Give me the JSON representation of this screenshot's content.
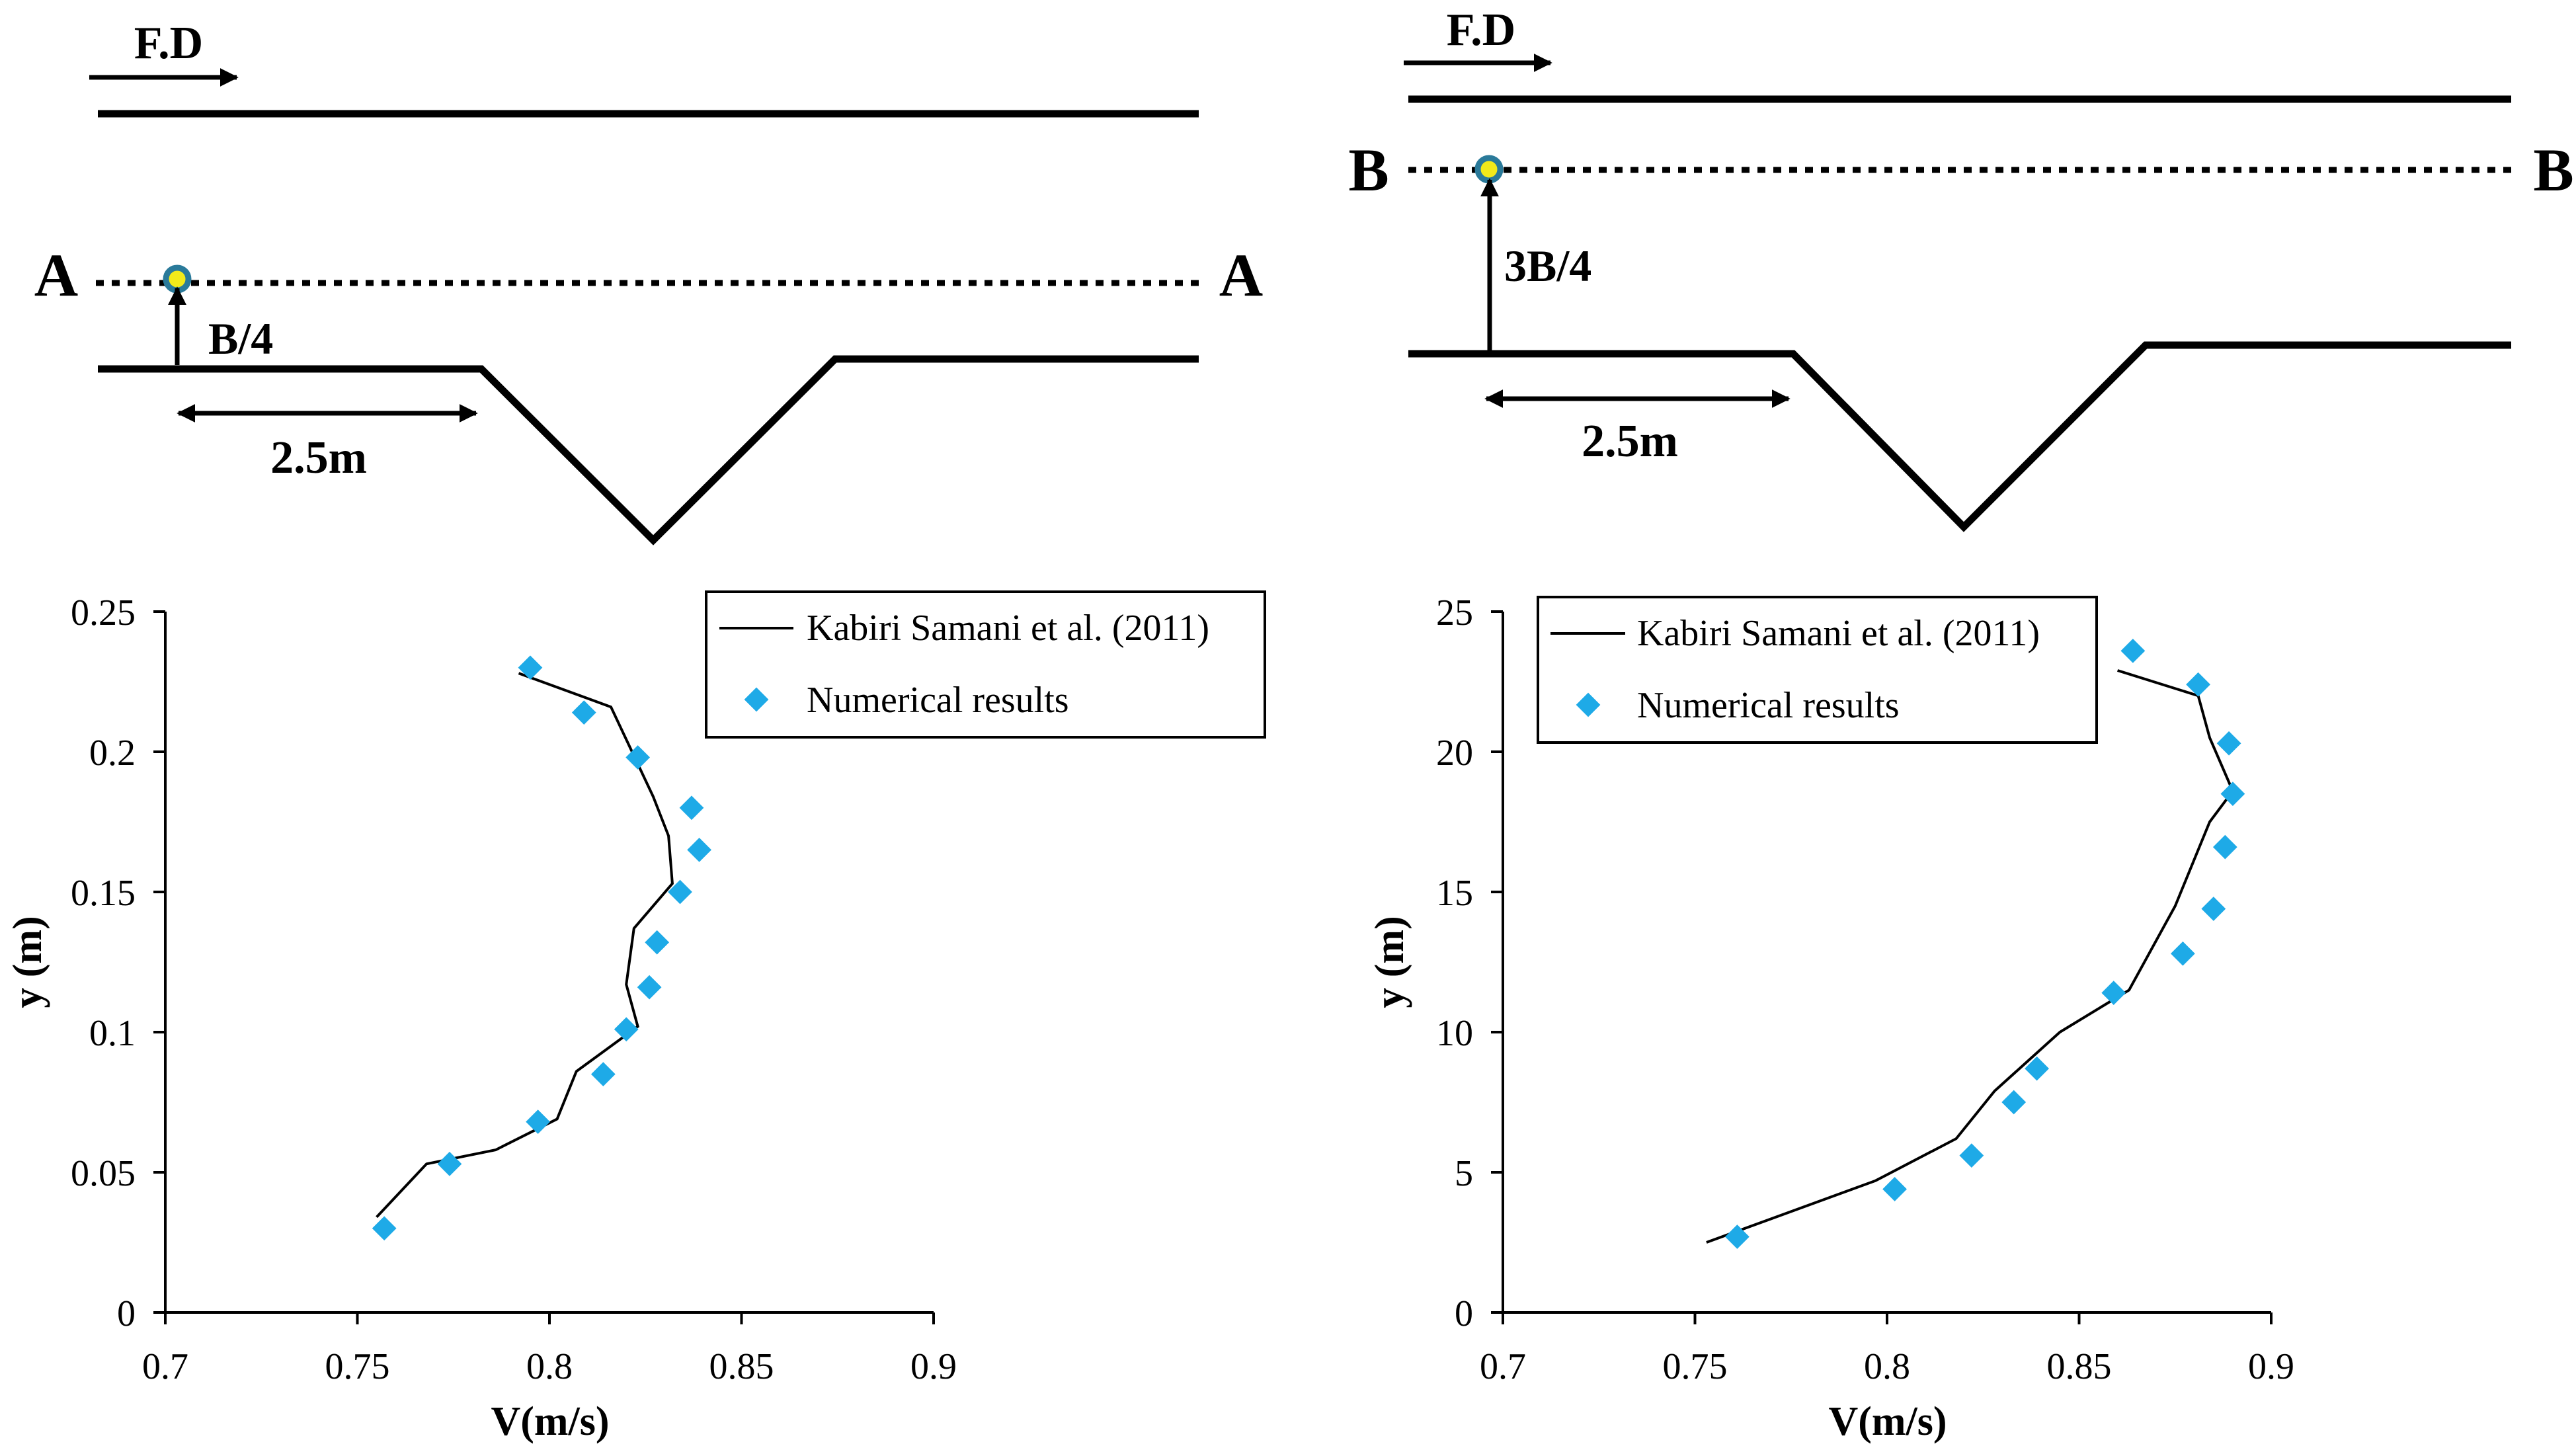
{
  "schematics": [
    {
      "flow_label": "F.D",
      "section_letter": "A",
      "offset_label": "B/4",
      "distance_label": "2.5m"
    },
    {
      "flow_label": "F.D",
      "section_letter": "B",
      "offset_label": "3B/4",
      "distance_label": "2.5m"
    }
  ],
  "chart_data": [
    {
      "type": "line+scatter",
      "section": "A",
      "xlabel": "V(m/s)",
      "ylabel": "y (m)",
      "xlim": [
        0.7,
        0.9
      ],
      "ylim": [
        0,
        0.25
      ],
      "xticks": [
        "0.7",
        "0.75",
        "0.8",
        "0.85",
        "0.9"
      ],
      "yticks": [
        "0",
        "0.05",
        "0.1",
        "0.15",
        "0.2",
        "0.25"
      ],
      "legend_position": "top-right",
      "series": [
        {
          "name": "Kabiri Samani et al. (2011)",
          "kind": "line",
          "color": "#000000",
          "points": [
            [
              0.755,
              0.034
            ],
            [
              0.768,
              0.053
            ],
            [
              0.786,
              0.058
            ],
            [
              0.802,
              0.069
            ],
            [
              0.807,
              0.086
            ],
            [
              0.823,
              0.102
            ],
            [
              0.82,
              0.117
            ],
            [
              0.822,
              0.137
            ],
            [
              0.832,
              0.153
            ],
            [
              0.831,
              0.17
            ],
            [
              0.827,
              0.184
            ],
            [
              0.816,
              0.216
            ],
            [
              0.792,
              0.228
            ]
          ]
        },
        {
          "name": "Numerical results",
          "kind": "scatter",
          "color": "#1EAAE7",
          "points": [
            [
              0.757,
              0.03
            ],
            [
              0.774,
              0.053
            ],
            [
              0.797,
              0.068
            ],
            [
              0.814,
              0.085
            ],
            [
              0.82,
              0.101
            ],
            [
              0.826,
              0.116
            ],
            [
              0.828,
              0.132
            ],
            [
              0.834,
              0.15
            ],
            [
              0.839,
              0.165
            ],
            [
              0.837,
              0.18
            ],
            [
              0.823,
              0.198
            ],
            [
              0.809,
              0.214
            ],
            [
              0.795,
              0.23
            ]
          ]
        }
      ]
    },
    {
      "type": "line+scatter",
      "section": "B",
      "xlabel": "V(m/s)",
      "ylabel": "y (m)",
      "xlim": [
        0.7,
        0.9
      ],
      "ylim": [
        0,
        25
      ],
      "xticks": [
        "0.7",
        "0.75",
        "0.8",
        "0.85",
        "0.9"
      ],
      "yticks": [
        "0",
        "5",
        "10",
        "15",
        "20",
        "25"
      ],
      "legend_position": "top-right",
      "series": [
        {
          "name": "Kabiri Samani et al. (2011)",
          "kind": "line",
          "color": "#000000",
          "points": [
            [
              0.753,
              2.5
            ],
            [
              0.797,
              4.7
            ],
            [
              0.818,
              6.2
            ],
            [
              0.828,
              7.9
            ],
            [
              0.845,
              10
            ],
            [
              0.863,
              11.5
            ],
            [
              0.875,
              14.5
            ],
            [
              0.884,
              17.5
            ],
            [
              0.89,
              18.6
            ],
            [
              0.884,
              20.5
            ],
            [
              0.881,
              22
            ],
            [
              0.86,
              22.9
            ]
          ]
        },
        {
          "name": "Numerical results",
          "kind": "scatter",
          "color": "#1EAAE7",
          "points": [
            [
              0.761,
              2.7
            ],
            [
              0.802,
              4.4
            ],
            [
              0.822,
              5.6
            ],
            [
              0.833,
              7.5
            ],
            [
              0.839,
              8.7
            ],
            [
              0.859,
              11.4
            ],
            [
              0.877,
              12.8
            ],
            [
              0.885,
              14.4
            ],
            [
              0.888,
              16.6
            ],
            [
              0.89,
              18.5
            ],
            [
              0.889,
              20.3
            ],
            [
              0.881,
              22.4
            ],
            [
              0.864,
              23.6
            ]
          ]
        }
      ]
    }
  ]
}
